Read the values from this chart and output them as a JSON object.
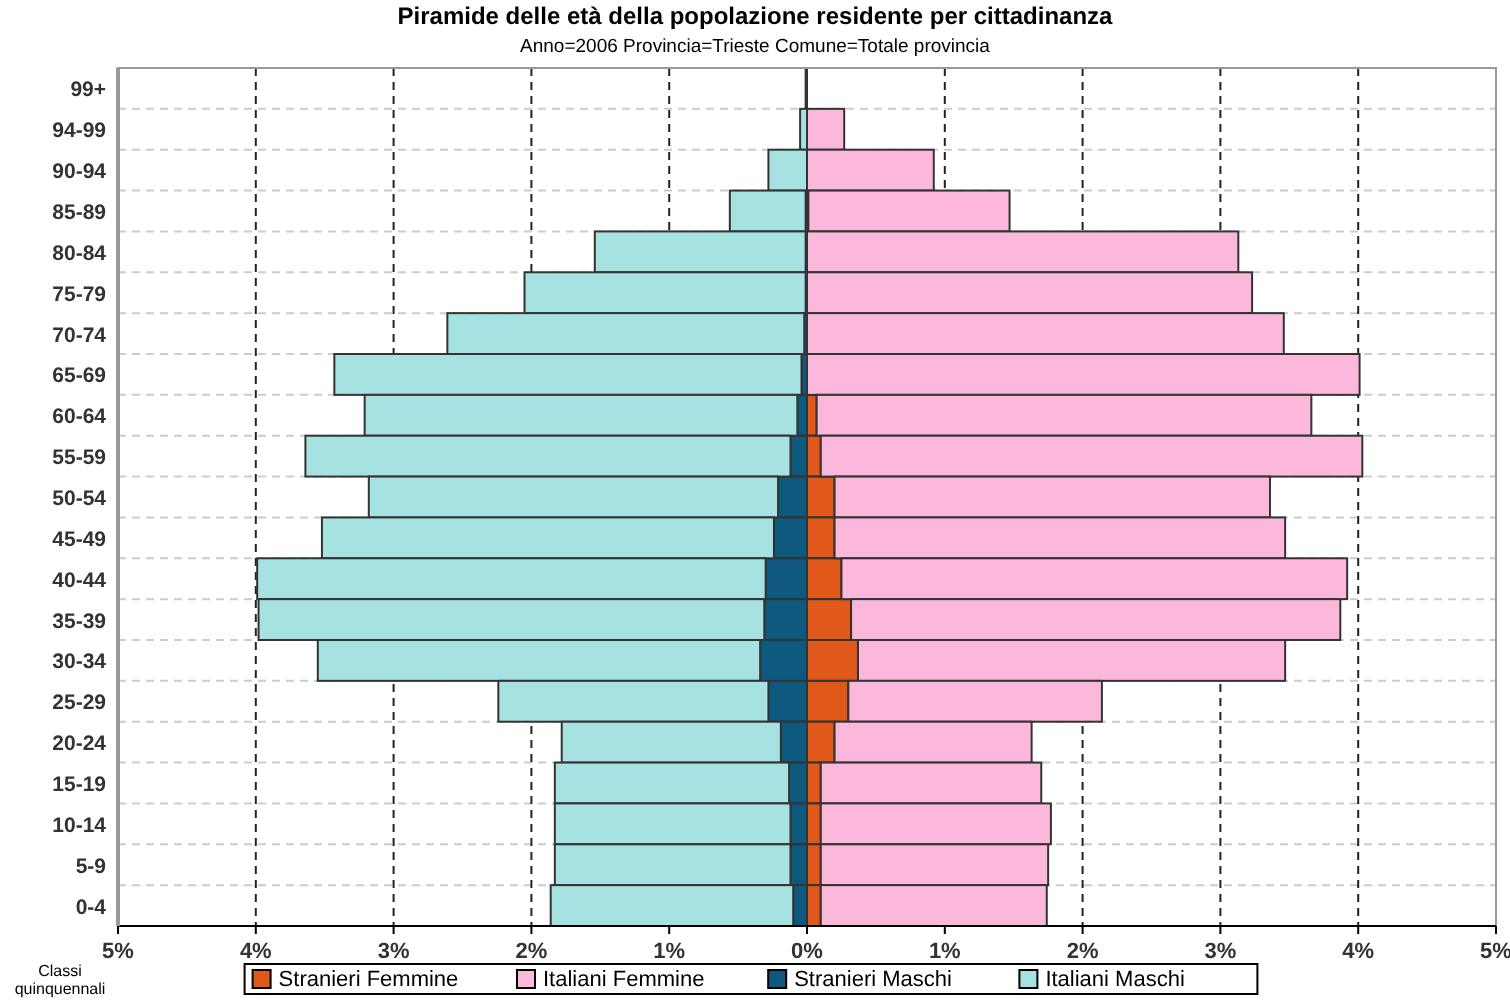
{
  "chart_data": {
    "type": "bar",
    "orientation": "horizontal",
    "stacked": true,
    "title": "Piramide delle età della popolazione residente per cittadinanza",
    "subtitle": "Anno=2006   Provincia=Trieste   Comune=Totale provincia",
    "ylabel": "Classi quinquennali",
    "categories": [
      "99+",
      "94-99",
      "90-94",
      "85-89",
      "80-84",
      "75-79",
      "70-74",
      "65-69",
      "60-64",
      "55-59",
      "50-54",
      "45-49",
      "40-44",
      "35-39",
      "30-34",
      "25-29",
      "20-24",
      "15-19",
      "10-14",
      "5-9",
      "0-4"
    ],
    "series": [
      {
        "name": "Stranieri Femmine",
        "color": "#e0581a",
        "values": [
          null,
          null,
          null,
          0.01,
          null,
          null,
          null,
          null,
          0.07,
          0.1,
          0.2,
          0.2,
          0.25,
          0.32,
          0.37,
          0.3,
          0.2,
          0.1,
          0.1,
          0.1,
          0.1
        ]
      },
      {
        "name": "Italiani Femmine",
        "color": "#fcb8da",
        "values": [
          null,
          0.27,
          0.92,
          1.46,
          3.13,
          3.23,
          3.46,
          4.01,
          3.59,
          3.93,
          3.16,
          3.27,
          3.67,
          3.55,
          3.1,
          1.84,
          1.43,
          1.6,
          1.67,
          1.65,
          1.64
        ]
      },
      {
        "name": "Stranieri Maschi",
        "color": "#0d5a7e",
        "values": [
          null,
          null,
          null,
          -0.01,
          -0.01,
          -0.01,
          -0.02,
          -0.04,
          -0.07,
          -0.12,
          -0.21,
          -0.24,
          -0.3,
          -0.31,
          -0.34,
          -0.28,
          -0.19,
          -0.13,
          -0.12,
          -0.12,
          -0.1
        ]
      },
      {
        "name": "Italiani Maschi",
        "color": "#a6e2e2",
        "values": [
          -0.01,
          -0.05,
          -0.28,
          -0.55,
          -1.53,
          -2.04,
          -2.59,
          -3.39,
          -3.14,
          -3.52,
          -2.97,
          -3.28,
          -3.69,
          -3.67,
          -3.21,
          -1.96,
          -1.59,
          -1.7,
          -1.71,
          -1.71,
          -1.76
        ]
      }
    ],
    "xlim": [
      -5,
      5
    ],
    "xticks": [
      {
        "value": -5,
        "label": "5%"
      },
      {
        "value": -4,
        "label": "4%"
      },
      {
        "value": -3,
        "label": "3%"
      },
      {
        "value": -2,
        "label": "2%"
      },
      {
        "value": -1,
        "label": "1%"
      },
      {
        "value": 0,
        "label": "0%"
      },
      {
        "value": 1,
        "label": "1%"
      },
      {
        "value": 2,
        "label": "2%"
      },
      {
        "value": 3,
        "label": "3%"
      },
      {
        "value": 4,
        "label": "4%"
      },
      {
        "value": 5,
        "label": "5%"
      }
    ],
    "grid": true,
    "legend": "bottom"
  }
}
